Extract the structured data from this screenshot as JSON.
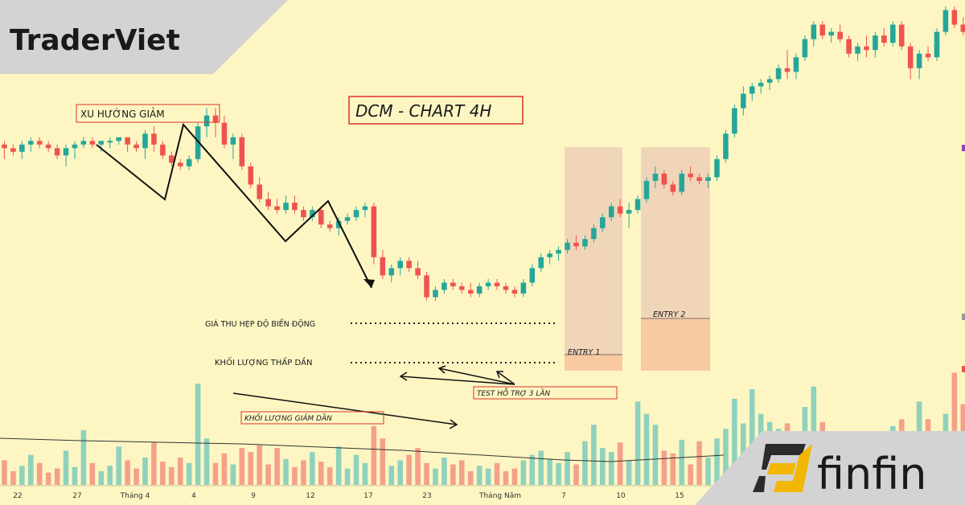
{
  "brand": {
    "title": "TraderViet",
    "partner": "finfin"
  },
  "chart_data": {
    "type": "candlestick",
    "title": "DCM - CHART 4H",
    "xlabel": "",
    "ylabel": "",
    "x_ticks": [
      "22",
      "27",
      "Tháng 4",
      "4",
      "9",
      "12",
      "17",
      "23",
      "Tháng Năm",
      "7",
      "10",
      "15"
    ],
    "colors": {
      "up": "#26a69a",
      "down": "#ef5350",
      "vol_up": "#8fd1bd",
      "vol_down": "#f5a08a",
      "box": "#e8b9b0",
      "entry": "#f9c9a0"
    },
    "candles": [
      [
        0.62,
        0.63,
        0.58,
        0.61
      ],
      [
        0.61,
        0.62,
        0.59,
        0.6
      ],
      [
        0.6,
        0.63,
        0.58,
        0.62
      ],
      [
        0.62,
        0.64,
        0.6,
        0.63
      ],
      [
        0.63,
        0.64,
        0.61,
        0.62
      ],
      [
        0.62,
        0.63,
        0.6,
        0.61
      ],
      [
        0.61,
        0.62,
        0.58,
        0.59
      ],
      [
        0.59,
        0.62,
        0.56,
        0.61
      ],
      [
        0.61,
        0.63,
        0.58,
        0.62
      ],
      [
        0.62,
        0.64,
        0.61,
        0.63
      ],
      [
        0.63,
        0.64,
        0.61,
        0.62
      ],
      [
        0.62,
        0.63,
        0.6,
        0.63
      ],
      [
        0.63,
        0.64,
        0.61,
        0.63
      ],
      [
        0.63,
        0.64,
        0.62,
        0.64
      ],
      [
        0.64,
        0.64,
        0.6,
        0.62
      ],
      [
        0.62,
        0.63,
        0.6,
        0.61
      ],
      [
        0.61,
        0.66,
        0.58,
        0.65
      ],
      [
        0.65,
        0.67,
        0.6,
        0.62
      ],
      [
        0.62,
        0.63,
        0.58,
        0.59
      ],
      [
        0.59,
        0.6,
        0.56,
        0.57
      ],
      [
        0.57,
        0.58,
        0.55,
        0.56
      ],
      [
        0.56,
        0.59,
        0.55,
        0.58
      ],
      [
        0.58,
        0.68,
        0.57,
        0.67
      ],
      [
        0.67,
        0.72,
        0.64,
        0.7
      ],
      [
        0.7,
        0.72,
        0.64,
        0.68
      ],
      [
        0.68,
        0.7,
        0.61,
        0.62
      ],
      [
        0.62,
        0.65,
        0.58,
        0.64
      ],
      [
        0.64,
        0.65,
        0.55,
        0.56
      ],
      [
        0.56,
        0.57,
        0.5,
        0.51
      ],
      [
        0.51,
        0.53,
        0.46,
        0.47
      ],
      [
        0.47,
        0.49,
        0.44,
        0.45
      ],
      [
        0.45,
        0.47,
        0.43,
        0.44
      ],
      [
        0.44,
        0.48,
        0.43,
        0.46
      ],
      [
        0.46,
        0.48,
        0.43,
        0.44
      ],
      [
        0.44,
        0.45,
        0.41,
        0.42
      ],
      [
        0.42,
        0.45,
        0.41,
        0.44
      ],
      [
        0.44,
        0.45,
        0.39,
        0.4
      ],
      [
        0.4,
        0.41,
        0.38,
        0.39
      ],
      [
        0.39,
        0.42,
        0.37,
        0.41
      ],
      [
        0.41,
        0.43,
        0.4,
        0.42
      ],
      [
        0.42,
        0.45,
        0.41,
        0.44
      ],
      [
        0.44,
        0.46,
        0.42,
        0.45
      ],
      [
        0.45,
        0.46,
        0.29,
        0.31
      ],
      [
        0.31,
        0.33,
        0.25,
        0.26
      ],
      [
        0.26,
        0.29,
        0.24,
        0.28
      ],
      [
        0.28,
        0.31,
        0.26,
        0.3
      ],
      [
        0.3,
        0.31,
        0.27,
        0.28
      ],
      [
        0.28,
        0.3,
        0.25,
        0.26
      ],
      [
        0.26,
        0.27,
        0.19,
        0.2
      ],
      [
        0.2,
        0.23,
        0.19,
        0.22
      ],
      [
        0.22,
        0.25,
        0.21,
        0.24
      ],
      [
        0.24,
        0.25,
        0.22,
        0.23
      ],
      [
        0.23,
        0.24,
        0.21,
        0.22
      ],
      [
        0.22,
        0.24,
        0.2,
        0.21
      ],
      [
        0.21,
        0.24,
        0.2,
        0.23
      ],
      [
        0.23,
        0.25,
        0.22,
        0.24
      ],
      [
        0.24,
        0.25,
        0.22,
        0.23
      ],
      [
        0.23,
        0.24,
        0.21,
        0.22
      ],
      [
        0.22,
        0.23,
        0.2,
        0.21
      ],
      [
        0.21,
        0.25,
        0.2,
        0.24
      ],
      [
        0.24,
        0.29,
        0.23,
        0.28
      ],
      [
        0.28,
        0.32,
        0.27,
        0.31
      ],
      [
        0.31,
        0.33,
        0.29,
        0.32
      ],
      [
        0.32,
        0.34,
        0.3,
        0.33
      ],
      [
        0.33,
        0.36,
        0.32,
        0.35
      ],
      [
        0.35,
        0.37,
        0.33,
        0.34
      ],
      [
        0.34,
        0.37,
        0.33,
        0.36
      ],
      [
        0.36,
        0.4,
        0.35,
        0.39
      ],
      [
        0.39,
        0.43,
        0.38,
        0.42
      ],
      [
        0.42,
        0.46,
        0.41,
        0.45
      ],
      [
        0.45,
        0.47,
        0.42,
        0.43
      ],
      [
        0.43,
        0.46,
        0.39,
        0.44
      ],
      [
        0.44,
        0.48,
        0.43,
        0.47
      ],
      [
        0.47,
        0.53,
        0.46,
        0.52
      ],
      [
        0.52,
        0.56,
        0.5,
        0.54
      ],
      [
        0.54,
        0.55,
        0.5,
        0.51
      ],
      [
        0.51,
        0.52,
        0.48,
        0.49
      ],
      [
        0.49,
        0.55,
        0.48,
        0.54
      ],
      [
        0.54,
        0.56,
        0.52,
        0.53
      ],
      [
        0.53,
        0.54,
        0.51,
        0.52
      ],
      [
        0.52,
        0.54,
        0.5,
        0.53
      ],
      [
        0.53,
        0.59,
        0.52,
        0.58
      ],
      [
        0.58,
        0.66,
        0.57,
        0.65
      ],
      [
        0.65,
        0.73,
        0.64,
        0.72
      ],
      [
        0.72,
        0.78,
        0.7,
        0.76
      ],
      [
        0.76,
        0.79,
        0.74,
        0.78
      ],
      [
        0.78,
        0.8,
        0.76,
        0.79
      ],
      [
        0.79,
        0.81,
        0.77,
        0.8
      ],
      [
        0.8,
        0.84,
        0.79,
        0.83
      ],
      [
        0.83,
        0.88,
        0.8,
        0.82
      ],
      [
        0.82,
        0.87,
        0.8,
        0.86
      ],
      [
        0.86,
        0.92,
        0.85,
        0.91
      ],
      [
        0.91,
        0.96,
        0.89,
        0.95
      ],
      [
        0.95,
        0.96,
        0.91,
        0.92
      ],
      [
        0.92,
        0.94,
        0.9,
        0.93
      ],
      [
        0.93,
        0.95,
        0.9,
        0.91
      ],
      [
        0.91,
        0.92,
        0.86,
        0.87
      ],
      [
        0.87,
        0.9,
        0.85,
        0.89
      ],
      [
        0.89,
        0.92,
        0.86,
        0.88
      ],
      [
        0.88,
        0.93,
        0.86,
        0.92
      ],
      [
        0.92,
        0.94,
        0.89,
        0.9
      ],
      [
        0.9,
        0.96,
        0.89,
        0.95
      ],
      [
        0.95,
        0.96,
        0.88,
        0.89
      ],
      [
        0.89,
        0.9,
        0.8,
        0.83
      ],
      [
        0.83,
        0.88,
        0.8,
        0.87
      ],
      [
        0.87,
        0.89,
        0.85,
        0.86
      ],
      [
        0.86,
        0.94,
        0.85,
        0.93
      ],
      [
        0.93,
        1.0,
        0.92,
        0.99
      ],
      [
        0.99,
        1.0,
        0.94,
        0.95
      ],
      [
        0.95,
        0.97,
        0.92,
        0.93
      ]
    ],
    "volumes": [
      0.18,
      0.1,
      0.14,
      0.22,
      0.16,
      0.09,
      0.12,
      0.25,
      0.13,
      0.4,
      0.16,
      0.1,
      0.14,
      0.28,
      0.18,
      0.12,
      0.2,
      0.31,
      0.17,
      0.13,
      0.2,
      0.16,
      0.74,
      0.34,
      0.16,
      0.23,
      0.15,
      0.27,
      0.24,
      0.29,
      0.15,
      0.27,
      0.19,
      0.13,
      0.18,
      0.24,
      0.17,
      0.13,
      0.28,
      0.12,
      0.22,
      0.16,
      0.43,
      0.34,
      0.14,
      0.18,
      0.22,
      0.27,
      0.16,
      0.12,
      0.2,
      0.15,
      0.18,
      0.1,
      0.14,
      0.12,
      0.16,
      0.1,
      0.12,
      0.18,
      0.22,
      0.25,
      0.19,
      0.16,
      0.24,
      0.15,
      0.32,
      0.44,
      0.27,
      0.24,
      0.31,
      0.18,
      0.61,
      0.52,
      0.44,
      0.25,
      0.23,
      0.33,
      0.15,
      0.32,
      0.2,
      0.34,
      0.41,
      0.63,
      0.45,
      0.7,
      0.52,
      0.46,
      0.41,
      0.45,
      0.36,
      0.57,
      0.72,
      0.46,
      0.31,
      0.37,
      0.16,
      0.25,
      0.24,
      0.35,
      0.28,
      0.43,
      0.48,
      0.35,
      0.61,
      0.48,
      0.38,
      0.52,
      0.82,
      0.59,
      0.48
    ],
    "annotations": {
      "downtrend": "XU HƯỚNG GIẢM",
      "narrowing": "GIÁ THU HẸP ĐỘ BIẾN ĐỘNG",
      "volume_low": "KHỐI LƯỢNG THẤP DẦN",
      "test_support": "TEST HỖ TRỢ 3 LẦN",
      "volume_decrease": "KHỐI LƯỢNG GIẢM DẦN",
      "entry1": "ENTRY 1",
      "entry2": "ENTRY 2"
    }
  }
}
